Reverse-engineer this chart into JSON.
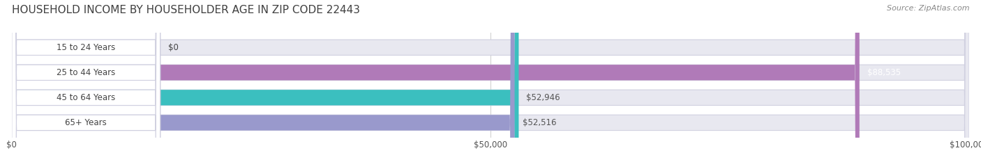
{
  "title": "HOUSEHOLD INCOME BY HOUSEHOLDER AGE IN ZIP CODE 22443",
  "source": "Source: ZipAtlas.com",
  "categories": [
    "15 to 24 Years",
    "25 to 44 Years",
    "45 to 64 Years",
    "65+ Years"
  ],
  "values": [
    0,
    88535,
    52946,
    52516
  ],
  "bar_colors": [
    "#a8c8e8",
    "#b07ab8",
    "#3bbfbf",
    "#9999cc"
  ],
  "bar_bg_color": "#e8e8f0",
  "bar_border_color": "#d0d0e0",
  "value_labels": [
    "$0",
    "$88,535",
    "$52,946",
    "$52,516"
  ],
  "value_label_colors": [
    "#555555",
    "#ffffff",
    "#555555",
    "#555555"
  ],
  "xlim": [
    0,
    100000
  ],
  "xticks": [
    0,
    50000,
    100000
  ],
  "xtick_labels": [
    "$0",
    "$50,000",
    "$100,000"
  ],
  "title_fontsize": 11,
  "source_fontsize": 8,
  "label_fontsize": 8.5,
  "value_fontsize": 8.5,
  "tick_fontsize": 8.5,
  "background_color": "#ffffff",
  "bar_height": 0.62,
  "bar_gap": 0.08
}
